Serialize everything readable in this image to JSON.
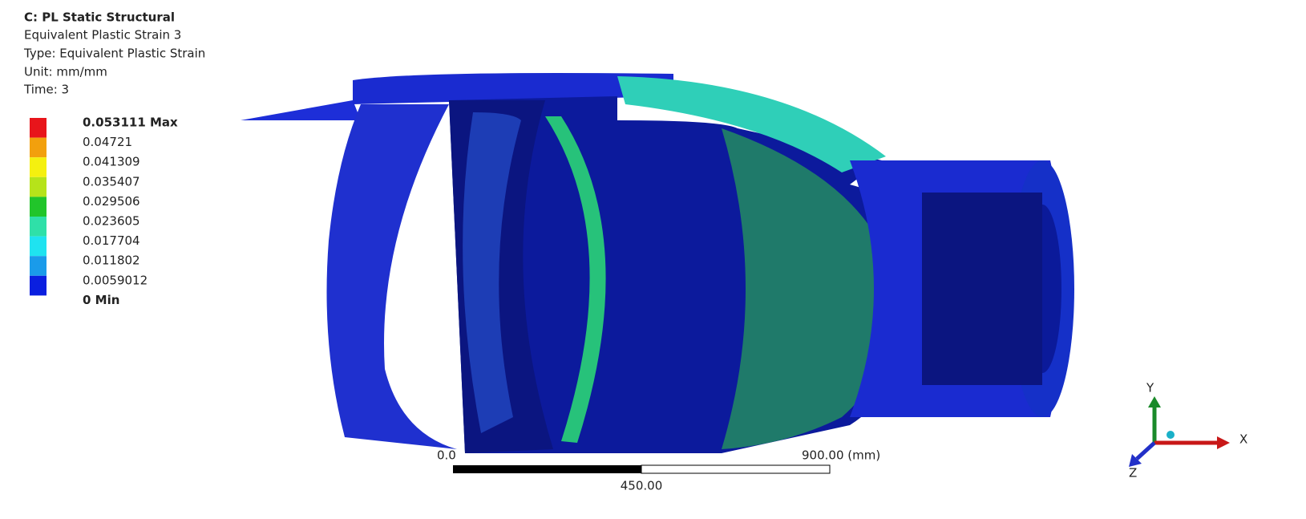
{
  "header": {
    "title": "C: PL Static Structural",
    "lines": [
      "Equivalent Plastic Strain 3",
      "Type: Equivalent Plastic Strain",
      "Unit: mm/mm",
      "Time: 3"
    ]
  },
  "legend": {
    "labels": [
      "0.053111 Max",
      "0.04721",
      "0.041309",
      "0.035407",
      "0.029506",
      "0.023605",
      "0.017704",
      "0.011802",
      "0.0059012",
      "0 Min"
    ],
    "colors": [
      "#e8151b",
      "#f2a00d",
      "#f5f00f",
      "#b6e31a",
      "#21c52a",
      "#2fe0a8",
      "#1fe3f0",
      "#1a9bea",
      "#0a1fe0"
    ]
  },
  "scale_bar": {
    "start": "0.0",
    "mid": "450.00",
    "end": "900.00 (mm)"
  },
  "triad": {
    "x": "X",
    "y": "Y",
    "z": "Z"
  }
}
